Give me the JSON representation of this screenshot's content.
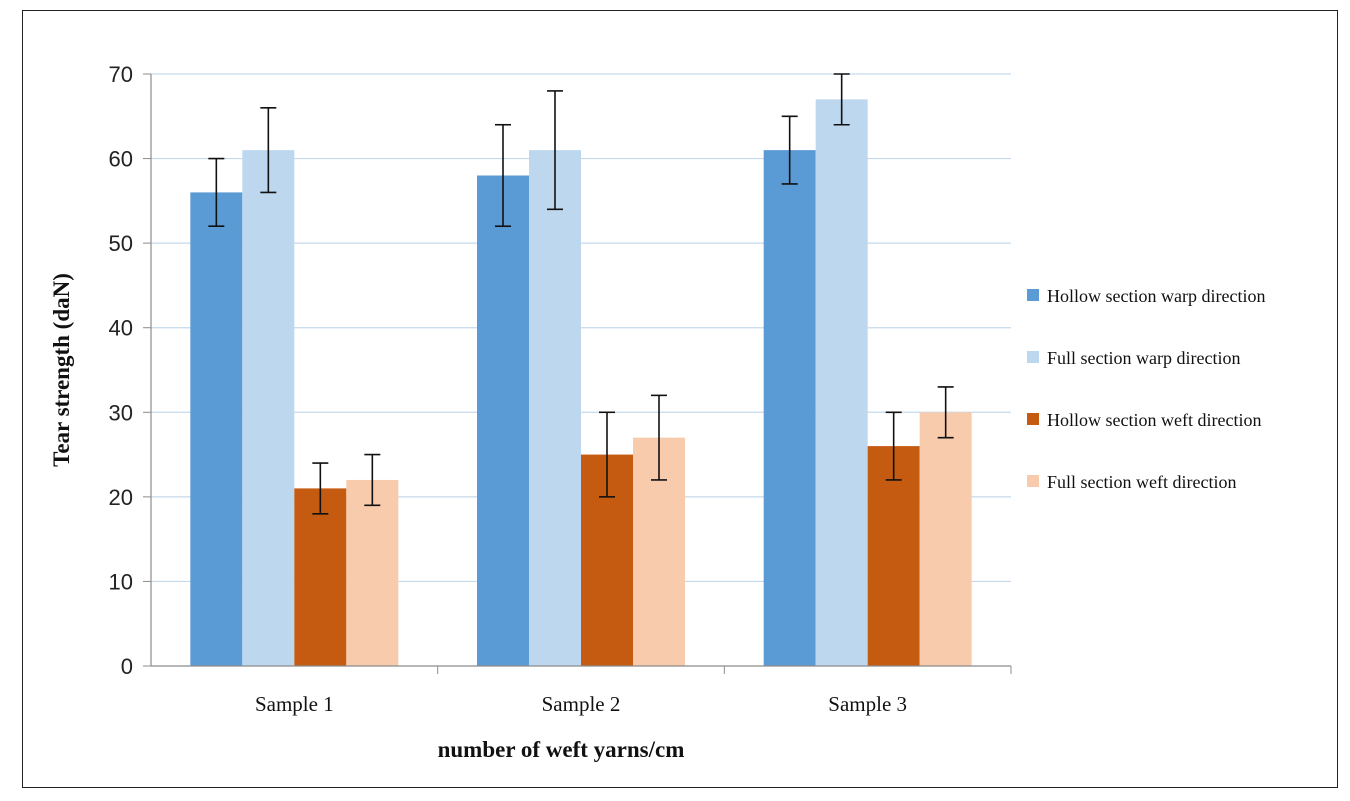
{
  "chart_data": {
    "type": "bar",
    "title": "",
    "xlabel": "number of weft yarns/cm",
    "ylabel": "Tear strength (daN)",
    "ylim": [
      0,
      70
    ],
    "yticks": [
      0,
      10,
      20,
      30,
      40,
      50,
      60,
      70
    ],
    "grid": true,
    "legend_position": "right",
    "categories": [
      "Sample 1",
      "Sample 2",
      "Sample 3"
    ],
    "series": [
      {
        "name": "Hollow section warp direction",
        "color": "#5b9bd5",
        "values": [
          56,
          58,
          61
        ],
        "error_low": [
          52,
          52,
          57
        ],
        "error_high": [
          60,
          64,
          65
        ]
      },
      {
        "name": "Full section warp direction",
        "color": "#bdd7ee",
        "values": [
          61,
          61,
          67
        ],
        "error_low": [
          56,
          54,
          64
        ],
        "error_high": [
          66,
          68,
          70
        ]
      },
      {
        "name": "Hollow section weft direction",
        "color": "#c55a11",
        "values": [
          21,
          25,
          26
        ],
        "error_low": [
          18,
          20,
          22
        ],
        "error_high": [
          24,
          30,
          30
        ]
      },
      {
        "name": "Full section weft direction",
        "color": "#f8cbad",
        "values": [
          22,
          27,
          30
        ],
        "error_low": [
          19,
          22,
          27
        ],
        "error_high": [
          25,
          32,
          33
        ]
      }
    ]
  }
}
